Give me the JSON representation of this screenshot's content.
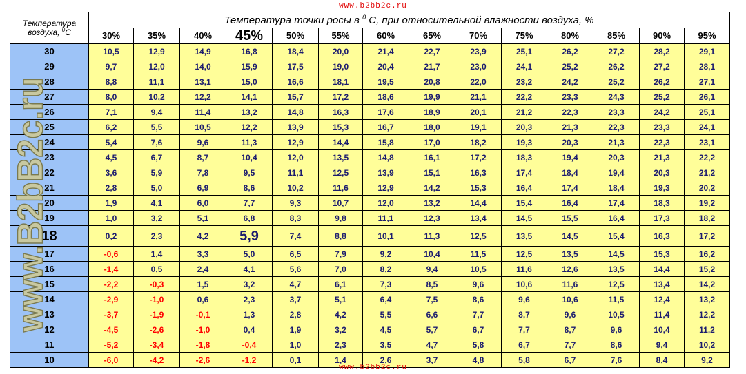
{
  "site_top": "www.b2bb2c.ru",
  "site_bottom": "www.b2bb2c.ru",
  "watermark": "www.B2bB2c.ru",
  "corner_line1": "Температура",
  "corner_line2_prefix": "воздуха, ",
  "corner_sup": "0",
  "corner_unit": "C",
  "title_prefix": "Температура точки росы в ",
  "title_sup": "0",
  "title_suffix": " С, при относительной влажности воздуха, %",
  "humidity": [
    "30%",
    "35%",
    "40%",
    "45%",
    "50%",
    "55%",
    "60%",
    "65%",
    "70%",
    "75%",
    "80%",
    "85%",
    "90%",
    "95%"
  ],
  "rows": [
    {
      "t": "30",
      "v": [
        "10,5",
        "12,9",
        "14,9",
        "16,8",
        "18,4",
        "20,0",
        "21,4",
        "22,7",
        "23,9",
        "25,1",
        "26,2",
        "27,2",
        "28,2",
        "29,1"
      ]
    },
    {
      "t": "29",
      "v": [
        "9,7",
        "12,0",
        "14,0",
        "15,9",
        "17,5",
        "19,0",
        "20,4",
        "21,7",
        "23,0",
        "24,1",
        "25,2",
        "26,2",
        "27,2",
        "28,1"
      ]
    },
    {
      "t": "28",
      "v": [
        "8,8",
        "11,1",
        "13,1",
        "15,0",
        "16,6",
        "18,1",
        "19,5",
        "20,8",
        "22,0",
        "23,2",
        "24,2",
        "25,2",
        "26,2",
        "27,1"
      ]
    },
    {
      "t": "27",
      "v": [
        "8,0",
        "10,2",
        "12,2",
        "14,1",
        "15,7",
        "17,2",
        "18,6",
        "19,9",
        "21,1",
        "22,2",
        "23,3",
        "24,3",
        "25,2",
        "26,1"
      ]
    },
    {
      "t": "26",
      "v": [
        "7,1",
        "9,4",
        "11,4",
        "13,2",
        "14,8",
        "16,3",
        "17,6",
        "18,9",
        "20,1",
        "21,2",
        "22,3",
        "23,3",
        "24,2",
        "25,1"
      ]
    },
    {
      "t": "25",
      "v": [
        "6,2",
        "5,5",
        "10,5",
        "12,2",
        "13,9",
        "15,3",
        "16,7",
        "18,0",
        "19,1",
        "20,3",
        "21,3",
        "22,3",
        "23,3",
        "24,1"
      ]
    },
    {
      "t": "24",
      "v": [
        "5,4",
        "7,6",
        "9,6",
        "11,3",
        "12,9",
        "14,4",
        "15,8",
        "17,0",
        "18,2",
        "19,3",
        "20,3",
        "21,3",
        "22,3",
        "23,1"
      ]
    },
    {
      "t": "23",
      "v": [
        "4,5",
        "6,7",
        "8,7",
        "10,4",
        "12,0",
        "13,5",
        "14,8",
        "16,1",
        "17,2",
        "18,3",
        "19,4",
        "20,3",
        "21,3",
        "22,2"
      ]
    },
    {
      "t": "22",
      "v": [
        "3,6",
        "5,9",
        "7,8",
        "9,5",
        "11,1",
        "12,5",
        "13,9",
        "15,1",
        "16,3",
        "17,4",
        "18,4",
        "19,4",
        "20,3",
        "21,2"
      ]
    },
    {
      "t": "21",
      "v": [
        "2,8",
        "5,0",
        "6,9",
        "8,6",
        "10,2",
        "11,6",
        "12,9",
        "14,2",
        "15,3",
        "16,4",
        "17,4",
        "18,4",
        "19,3",
        "20,2"
      ]
    },
    {
      "t": "20",
      "v": [
        "1,9",
        "4,1",
        "6,0",
        "7,7",
        "9,3",
        "10,7",
        "12,0",
        "13,2",
        "14,4",
        "15,4",
        "16,4",
        "17,4",
        "18,3",
        "19,2"
      ]
    },
    {
      "t": "19",
      "v": [
        "1,0",
        "3,2",
        "5,1",
        "6,8",
        "8,3",
        "9,8",
        "11,1",
        "12,3",
        "13,4",
        "14,5",
        "15,5",
        "16,4",
        "17,3",
        "18,2"
      ]
    },
    {
      "t": "18",
      "v": [
        "0,2",
        "2,3",
        "4,2",
        "5,9",
        "7,4",
        "8,8",
        "10,1",
        "11,3",
        "12,5",
        "13,5",
        "14,5",
        "15,4",
        "16,3",
        "17,2"
      ]
    },
    {
      "t": "17",
      "v": [
        "-0,6",
        "1,4",
        "3,3",
        "5,0",
        "6,5",
        "7,9",
        "9,2",
        "10,4",
        "11,5",
        "12,5",
        "13,5",
        "14,5",
        "15,3",
        "16,2"
      ]
    },
    {
      "t": "16",
      "v": [
        "-1,4",
        "0,5",
        "2,4",
        "4,1",
        "5,6",
        "7,0",
        "8,2",
        "9,4",
        "10,5",
        "11,6",
        "12,6",
        "13,5",
        "14,4",
        "15,2"
      ]
    },
    {
      "t": "15",
      "v": [
        "-2,2",
        "-0,3",
        "1,5",
        "3,2",
        "4,7",
        "6,1",
        "7,3",
        "8,5",
        "9,6",
        "10,6",
        "11,6",
        "12,5",
        "13,4",
        "14,2"
      ]
    },
    {
      "t": "14",
      "v": [
        "-2,9",
        "-1,0",
        "0,6",
        "2,3",
        "3,7",
        "5,1",
        "6,4",
        "7,5",
        "8,6",
        "9,6",
        "10,6",
        "11,5",
        "12,4",
        "13,2"
      ]
    },
    {
      "t": "13",
      "v": [
        "-3,7",
        "-1,9",
        "-0,1",
        "1,3",
        "2,8",
        "4,2",
        "5,5",
        "6,6",
        "7,7",
        "8,7",
        "9,6",
        "10,5",
        "11,4",
        "12,2"
      ]
    },
    {
      "t": "12",
      "v": [
        "-4,5",
        "-2,6",
        "-1,0",
        "0,4",
        "1,9",
        "3,2",
        "4,5",
        "5,7",
        "6,7",
        "7,7",
        "8,7",
        "9,6",
        "10,4",
        "11,2"
      ]
    },
    {
      "t": "11",
      "v": [
        "-5,2",
        "-3,4",
        "-1,8",
        "-0,4",
        "1,0",
        "2,3",
        "3,5",
        "4,7",
        "5,8",
        "6,7",
        "7,7",
        "8,6",
        "9,4",
        "10,2"
      ]
    },
    {
      "t": "10",
      "v": [
        "-6,0",
        "-4,2",
        "-2,6",
        "-1,2",
        "0,1",
        "1,4",
        "2,6",
        "3,7",
        "4,8",
        "5,8",
        "6,7",
        "7,6",
        "8,4",
        "9,2"
      ]
    }
  ],
  "highlight": {
    "humidity": "45%",
    "temperature": "18",
    "value": "5,9"
  },
  "colors": {
    "temp_column": "#9dc3f7",
    "cells": "#fffe99",
    "negative": "#ff0000",
    "values": "#1c1c6e",
    "watermark": "#c8c8a0",
    "site_link": "#e00000"
  }
}
